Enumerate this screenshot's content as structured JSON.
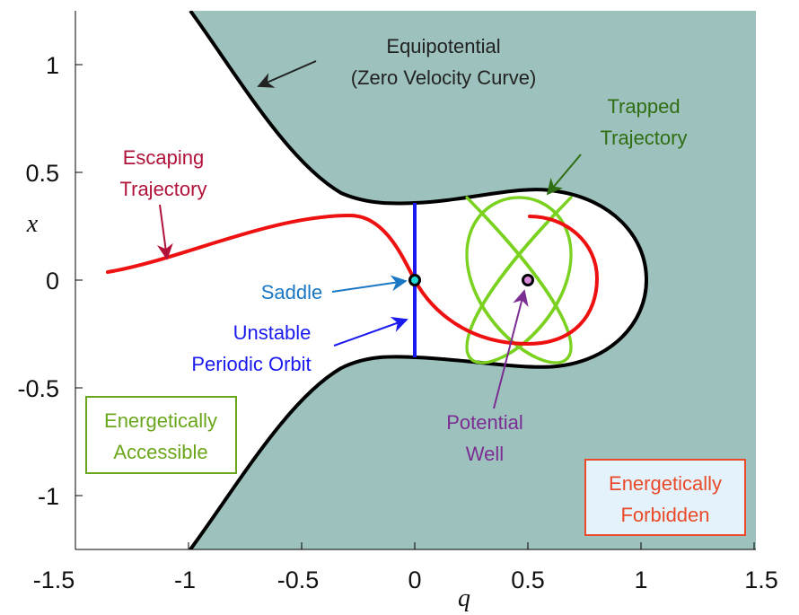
{
  "chart_data": {
    "type": "diagram",
    "xlabel": "q",
    "ylabel": "x",
    "xlim": [
      -1.5,
      1.5
    ],
    "ylim": [
      -1.25,
      1.25
    ],
    "xticks": [
      "-1.5",
      "-1",
      "-0.5",
      "0",
      "0.5",
      "1",
      "1.5"
    ],
    "yticks": [
      "1",
      "0.5",
      "0",
      "-0.5",
      "-1"
    ],
    "saddle_point": [
      0,
      0
    ],
    "well_point": [
      0.5,
      0
    ],
    "unstable_periodic_orbit": {
      "q": 0,
      "x_range": [
        -0.36,
        0.36
      ]
    },
    "annotations": {
      "equipotential_line1": "Equipotential",
      "equipotential_line2": "(Zero Velocity Curve)",
      "trapped_line1": "Trapped",
      "trapped_line2": "Trajectory",
      "escaping_line1": "Escaping",
      "escaping_line2": "Trajectory",
      "saddle": "Saddle",
      "upo_line1": "Unstable",
      "upo_line2": "Periodic Orbit",
      "well_line1": "Potential",
      "well_line2": "Well",
      "accessible_line1": "Energetically",
      "accessible_line2": "Accessible",
      "forbidden_line1": "Energetically",
      "forbidden_line2": "Forbidden"
    },
    "colors": {
      "forbidden_fill": "#9dc1bd",
      "boundary": "#000000",
      "escaping": "#ee1111",
      "trapped": "#7ad11f",
      "upo": "#1a1aee",
      "saddle_marker": "#1fd8d8",
      "well_marker": "#d98ad9",
      "equipotential_text": "#222222",
      "trapped_text": "#2f6e12",
      "escaping_text": "#b0123a",
      "saddle_text": "#1a77c4",
      "upo_text": "#1a1aee",
      "well_text": "#7b2d92",
      "accessible_text": "#6aa61c",
      "forbidden_text": "#ea4a2a",
      "forbidden_box_fill": "#e4f2fb"
    }
  }
}
